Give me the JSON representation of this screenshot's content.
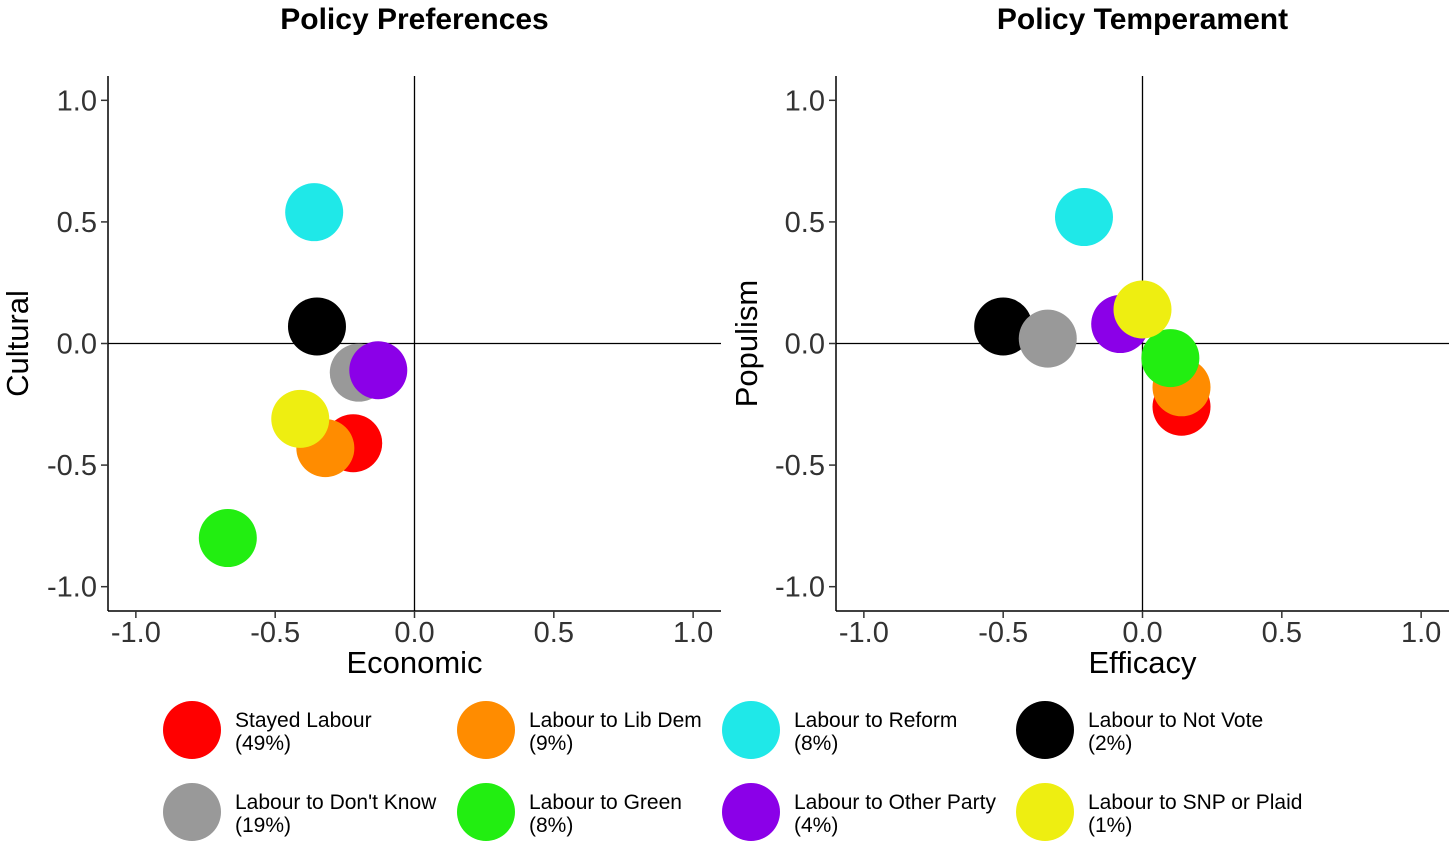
{
  "chart_data": [
    {
      "type": "scatter",
      "title": "Policy Preferences",
      "xlabel": "Economic",
      "ylabel": "Cultural",
      "xlim": [
        -1.1,
        1.1
      ],
      "ylim": [
        -1.1,
        1.1
      ],
      "xticks": [
        -1.0,
        -0.5,
        0.0,
        0.5,
        1.0
      ],
      "yticks": [
        -1.0,
        -0.5,
        0.0,
        0.5,
        1.0
      ],
      "xtick_labels": [
        "-1.0",
        "-0.5",
        "0.0",
        "0.5",
        "1.0"
      ],
      "ytick_labels": [
        "-1.0",
        "-0.5",
        "0.0",
        "0.5",
        "1.0"
      ],
      "grid": false,
      "reference_lines": {
        "x": 0,
        "y": 0
      },
      "points": [
        {
          "group": "Stayed Labour",
          "x": -0.22,
          "y": -0.41,
          "color": "#FF0000"
        },
        {
          "group": "Labour to Lib Dem",
          "x": -0.32,
          "y": -0.43,
          "color": "#FF8C00"
        },
        {
          "group": "Labour to Reform",
          "x": -0.36,
          "y": 0.54,
          "color": "#1FE8E8"
        },
        {
          "group": "Labour to Not Vote",
          "x": -0.35,
          "y": 0.07,
          "color": "#000000"
        },
        {
          "group": "Labour to Don't Know",
          "x": -0.2,
          "y": -0.12,
          "color": "#999999"
        },
        {
          "group": "Labour to Green",
          "x": -0.67,
          "y": -0.8,
          "color": "#22EE11"
        },
        {
          "group": "Labour to Other Party",
          "x": -0.13,
          "y": -0.11,
          "color": "#8B00E8"
        },
        {
          "group": "Labour to SNP or Plaid",
          "x": -0.41,
          "y": -0.31,
          "color": "#EEEE11"
        }
      ]
    },
    {
      "type": "scatter",
      "title": "Policy Temperament",
      "xlabel": "Efficacy",
      "ylabel": "Populism",
      "xlim": [
        -1.1,
        1.1
      ],
      "ylim": [
        -1.1,
        1.1
      ],
      "xticks": [
        -1.0,
        -0.5,
        0.0,
        0.5,
        1.0
      ],
      "yticks": [
        -1.0,
        -0.5,
        0.0,
        0.5,
        1.0
      ],
      "xtick_labels": [
        "-1.0",
        "-0.5",
        "0.0",
        "0.5",
        "1.0"
      ],
      "ytick_labels": [
        "-1.0",
        "-0.5",
        "0.0",
        "0.5",
        "1.0"
      ],
      "grid": false,
      "reference_lines": {
        "x": 0,
        "y": 0
      },
      "points": [
        {
          "group": "Stayed Labour",
          "x": 0.14,
          "y": -0.26,
          "color": "#FF0000"
        },
        {
          "group": "Labour to Lib Dem",
          "x": 0.14,
          "y": -0.18,
          "color": "#FF8C00"
        },
        {
          "group": "Labour to Reform",
          "x": -0.21,
          "y": 0.52,
          "color": "#1FE8E8"
        },
        {
          "group": "Labour to Not Vote",
          "x": -0.5,
          "y": 0.07,
          "color": "#000000"
        },
        {
          "group": "Labour to Don't Know",
          "x": -0.34,
          "y": 0.02,
          "color": "#999999"
        },
        {
          "group": "Labour to Green",
          "x": 0.1,
          "y": -0.06,
          "color": "#22EE11"
        },
        {
          "group": "Labour to Other Party",
          "x": -0.08,
          "y": 0.08,
          "color": "#8B00E8"
        },
        {
          "group": "Labour to SNP or Plaid",
          "x": 0.0,
          "y": 0.14,
          "color": "#EEEE11"
        }
      ]
    }
  ],
  "legend": {
    "placement": "bottom",
    "items": [
      {
        "label": "Stayed Labour",
        "share": "(49%)",
        "color": "#FF0000"
      },
      {
        "label": "Labour to Lib Dem",
        "share": "(9%)",
        "color": "#FF8C00"
      },
      {
        "label": "Labour to Reform",
        "share": "(8%)",
        "color": "#1FE8E8"
      },
      {
        "label": "Labour to Not Vote",
        "share": "(2%)",
        "color": "#000000"
      },
      {
        "label": "Labour to Don't Know",
        "share": "(19%)",
        "color": "#999999"
      },
      {
        "label": "Labour to Green",
        "share": "(8%)",
        "color": "#22EE11"
      },
      {
        "label": "Labour to Other Party",
        "share": "(4%)",
        "color": "#8B00E8"
      },
      {
        "label": "Labour to SNP or Plaid",
        "share": "(1%)",
        "color": "#EEEE11"
      }
    ]
  }
}
